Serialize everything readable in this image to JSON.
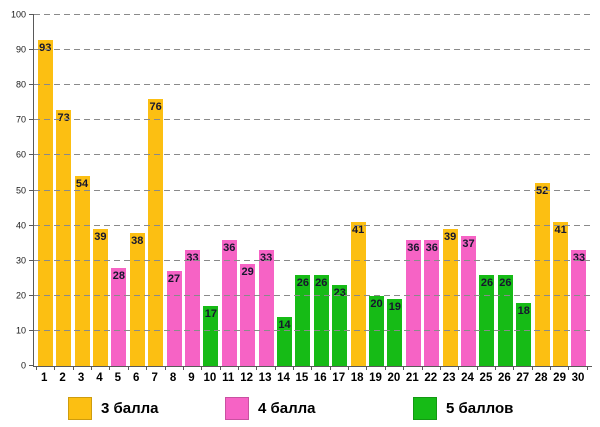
{
  "chart_data": {
    "type": "bar",
    "title": "",
    "xlabel": "",
    "ylabel": "",
    "ylim": [
      0,
      100
    ],
    "y_ticks": [
      0,
      10,
      20,
      30,
      40,
      50,
      60,
      70,
      80,
      90,
      100
    ],
    "grid": "horizontal-dashed",
    "legend_position": "bottom",
    "categories": [
      "1",
      "2",
      "3",
      "4",
      "5",
      "6",
      "7",
      "8",
      "9",
      "10",
      "11",
      "12",
      "13",
      "14",
      "15",
      "16",
      "17",
      "18",
      "19",
      "20",
      "21",
      "22",
      "23",
      "24",
      "25",
      "26",
      "27",
      "28",
      "29",
      "30"
    ],
    "values": [
      93,
      73,
      54,
      39,
      28,
      38,
      76,
      27,
      33,
      17,
      36,
      29,
      33,
      14,
      26,
      26,
      23,
      41,
      20,
      19,
      36,
      36,
      39,
      37,
      26,
      26,
      18,
      52,
      41,
      33
    ],
    "point_groups": [
      "3 балла",
      "3 балла",
      "3 балла",
      "3 балла",
      "4 балла",
      "3 балла",
      "3 балла",
      "4 балла",
      "4 балла",
      "5 баллов",
      "4 балла",
      "4 балла",
      "4 балла",
      "5 баллов",
      "5 баллов",
      "5 баллов",
      "5 баллов",
      "3 балла",
      "5 баллов",
      "5 баллов",
      "4 балла",
      "4 балла",
      "3 балла",
      "4 балла",
      "5 баллов",
      "5 баллов",
      "5 баллов",
      "3 балла",
      "3 балла",
      "4 балла"
    ]
  },
  "legend": {
    "items": [
      {
        "label": "3 балла",
        "color": "#FCBF12"
      },
      {
        "label": "4 балла",
        "color": "#F663C5"
      },
      {
        "label": "5 баллов",
        "color": "#16BB16"
      }
    ]
  },
  "colors": {
    "grid": "#8a8a8a",
    "axis": "#595959",
    "value_label": "#17172e",
    "background": "#ffffff"
  }
}
